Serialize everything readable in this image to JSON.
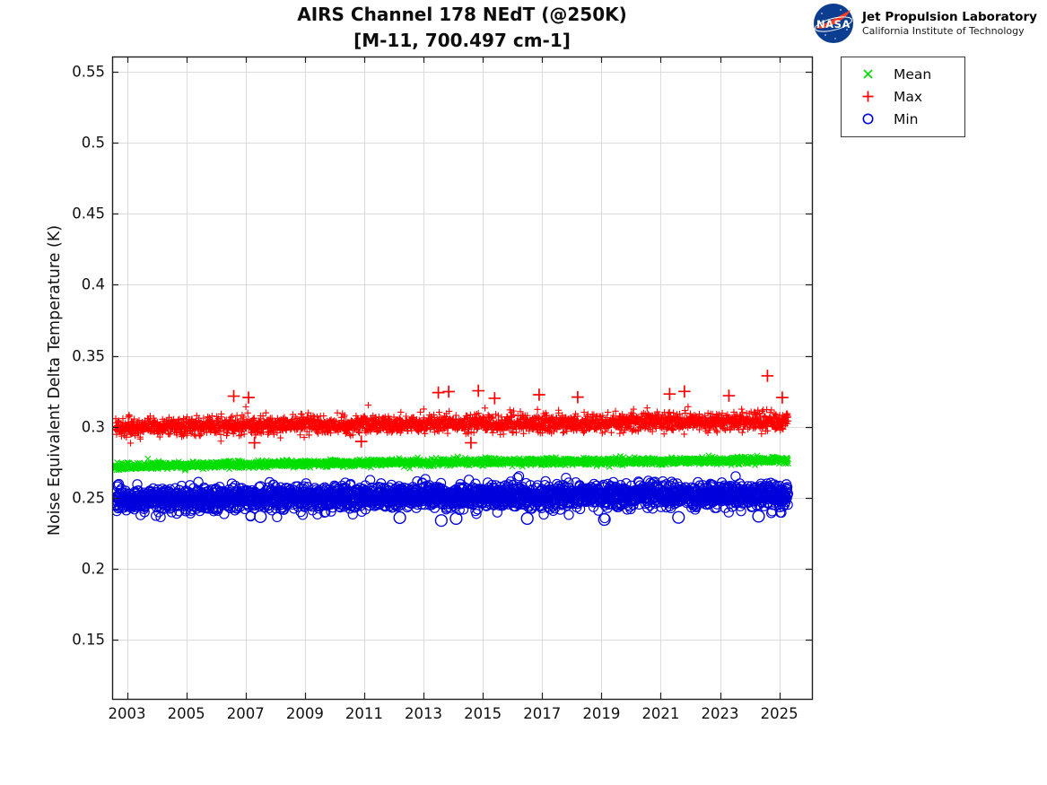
{
  "branding": {
    "logo_alt": "NASA",
    "org_name": "Jet Propulsion Laboratory",
    "org_sub": "California Institute of Technology"
  },
  "chart_data": {
    "type": "scatter",
    "title": "AIRS Channel 178 NEdT (@250K)",
    "subtitle": "[M-11, 700.497 cm-1]",
    "xlabel": "",
    "ylabel": "Noise Equivalent Delta Temperature (K)",
    "xlim": [
      2002.5,
      2026.1
    ],
    "ylim": [
      0.108,
      0.561
    ],
    "xticks": [
      2003,
      2005,
      2007,
      2009,
      2011,
      2013,
      2015,
      2017,
      2019,
      2021,
      2023,
      2025
    ],
    "xtick_labels": [
      "2003",
      "2005",
      "2007",
      "2009",
      "2011",
      "2013",
      "2015",
      "2017",
      "2019",
      "2021",
      "2023",
      "2025"
    ],
    "yticks": [
      0.15,
      0.2,
      0.25,
      0.3,
      0.35,
      0.4,
      0.45,
      0.5,
      0.55
    ],
    "ytick_labels": [
      "0.15",
      "0.2",
      "0.25",
      "0.3",
      "0.35",
      "0.4",
      "0.45",
      "0.5",
      "0.55"
    ],
    "grid": true,
    "grid_color": "#dcdcdc",
    "axis_color": "#1f1f1f",
    "data_time_range": [
      2002.6,
      2025.3
    ],
    "legend": {
      "position": "outside-top-right",
      "entries": [
        {
          "label": "Mean",
          "marker": "x",
          "color": "#00DF00"
        },
        {
          "label": "Max",
          "marker": "+",
          "color": "#FF0000"
        },
        {
          "label": "Min",
          "marker": "o",
          "color": "#0000DD"
        }
      ]
    },
    "series": [
      {
        "name": "Mean",
        "marker": "x",
        "color": "#00DF00",
        "n": 2400,
        "trend": [
          [
            2002.6,
            0.2718
          ],
          [
            2008.0,
            0.2738
          ],
          [
            2015.0,
            0.2752
          ],
          [
            2020.0,
            0.2756
          ],
          [
            2025.3,
            0.2762
          ]
        ],
        "sd": 0.0012,
        "tail_up_prob": 0.0,
        "tail_up": 0.0,
        "tail_dn_prob": 0.0,
        "tail_dn": 0.0,
        "outliers": []
      },
      {
        "name": "Max",
        "marker": "+",
        "color": "#FF0000",
        "n": 2600,
        "trend": [
          [
            2002.6,
            0.2997
          ],
          [
            2008.0,
            0.3012
          ],
          [
            2015.0,
            0.3022
          ],
          [
            2025.3,
            0.3036
          ]
        ],
        "sd": 0.003,
        "tail_up_prob": 0.06,
        "tail_up": 0.005,
        "tail_dn_prob": 0.04,
        "tail_dn": 0.004,
        "outliers": [
          [
            2006.6,
            0.3215
          ],
          [
            2007.1,
            0.3205
          ],
          [
            2013.5,
            0.324
          ],
          [
            2013.85,
            0.3247
          ],
          [
            2014.85,
            0.3253
          ],
          [
            2015.4,
            0.32
          ],
          [
            2016.9,
            0.3225
          ],
          [
            2018.2,
            0.3208
          ],
          [
            2021.3,
            0.323
          ],
          [
            2021.8,
            0.3248
          ],
          [
            2023.3,
            0.3218
          ],
          [
            2024.6,
            0.3358
          ],
          [
            2025.1,
            0.3205
          ],
          [
            2007.3,
            0.2886
          ],
          [
            2014.6,
            0.2886
          ],
          [
            2010.9,
            0.2895
          ]
        ]
      },
      {
        "name": "Min",
        "marker": "o",
        "color": "#0000DD",
        "n": 2600,
        "trend": [
          [
            2002.6,
            0.2487
          ],
          [
            2010.0,
            0.25
          ],
          [
            2015.0,
            0.251
          ],
          [
            2025.3,
            0.2518
          ]
        ],
        "sd": 0.0042,
        "tail_up_prob": 0.02,
        "tail_up": 0.002,
        "tail_dn_prob": 0.08,
        "tail_dn": 0.004,
        "outliers": [
          [
            2007.5,
            0.2365
          ],
          [
            2012.2,
            0.2358
          ],
          [
            2013.6,
            0.2338
          ],
          [
            2014.1,
            0.2352
          ],
          [
            2016.5,
            0.2352
          ],
          [
            2019.1,
            0.2345
          ],
          [
            2021.6,
            0.236
          ],
          [
            2024.3,
            0.2368
          ]
        ]
      }
    ]
  }
}
